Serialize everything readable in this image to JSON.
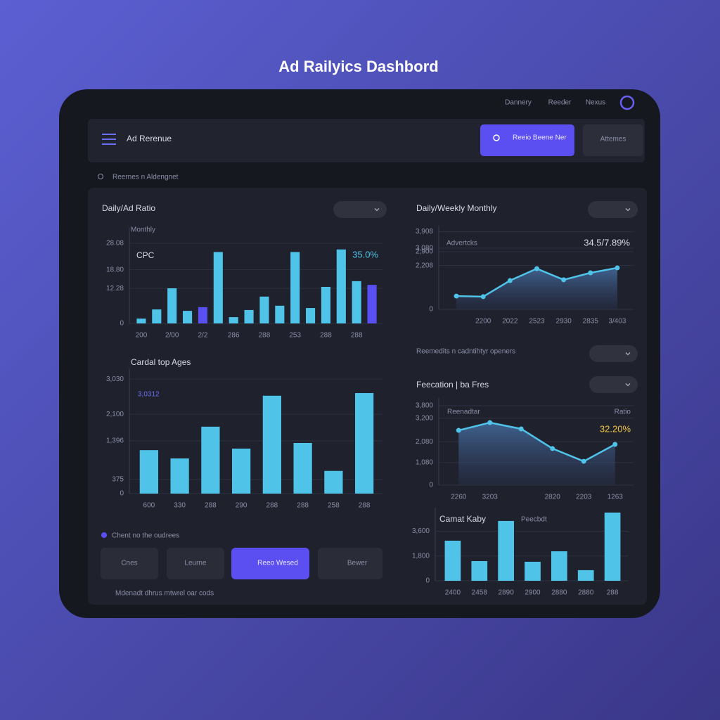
{
  "header": {
    "title": "Ad Railyics Dashbord"
  },
  "nav": {
    "items": [
      "Dannery",
      "Reeder",
      "Nexus"
    ]
  },
  "toolbar": {
    "title": "Ad Rerenue",
    "primary_button": "Reeio Beene Ner",
    "secondary_button": "Attemes"
  },
  "search": {
    "placeholder": "Reernes n Aldengnet"
  },
  "sections": {
    "right_caption": "Reemedits n cadntihtyr openers",
    "left_caption": "Chent no the oudrees",
    "footer": "Mdenadt dhrus mtwrel oar cods"
  },
  "buttons": [
    "Cnes",
    "Leurne",
    "Reeo Wesed",
    "Bewer"
  ],
  "chart_data": [
    {
      "type": "bar",
      "title": "Daily/Ad Ratio",
      "subtitle": "Monthly",
      "label": "CPC",
      "annotation": "35.0%",
      "categories": [
        "200",
        null,
        "2/00",
        null,
        "2/2",
        null,
        "286",
        null,
        "288",
        null,
        "253",
        null,
        "288",
        null,
        "288",
        null
      ],
      "values": [
        1.7,
        4.9,
        12.3,
        4.4,
        5.7,
        25,
        2.2,
        4.7,
        9.4,
        6.2,
        25,
        5.4,
        12.8,
        25.9,
        14.8,
        13.5
      ],
      "colors": [
        "#4fc3e8",
        "#4fc3e8",
        "#4fc3e8",
        "#4fc3e8",
        "#5a4ff0",
        "#4fc3e8",
        "#4fc3e8",
        "#4fc3e8",
        "#4fc3e8",
        "#4fc3e8",
        "#4fc3e8",
        "#4fc3e8",
        "#4fc3e8",
        "#4fc3e8",
        "#4fc3e8",
        "#5a4ff0"
      ],
      "ylim": [
        0,
        32
      ],
      "yticks": [
        0,
        12.28,
        {
          "value": 18.8,
          "label": "18.80"
        },
        28.08
      ],
      "grid": true
    },
    {
      "type": "area",
      "title": "Daily/Weekly Monthly",
      "label": "Advertcks",
      "annotation": "34.5/7.89%",
      "categories": [
        null,
        "2200",
        "2022",
        "2523",
        "2930",
        "2835",
        "3/403"
      ],
      "values": [
        670,
        640,
        1450,
        2050,
        1490,
        1840,
        2090
      ],
      "color": "#4fc3e8",
      "ylim": [
        0,
        4000
      ],
      "yticks": [
        0,
        {
          "value": 2208,
          "label": "2,208"
        },
        {
          "value": 2900,
          "label": "2,900"
        },
        {
          "value": 3080,
          "label": "3,080"
        },
        {
          "value": 3908,
          "label": "3,908"
        }
      ],
      "grid": true
    },
    {
      "type": "bar",
      "title": "Cardal top Ages",
      "annotation": "3,0312",
      "categories": [
        "600",
        "330",
        "288",
        "290",
        "288",
        "288",
        "258",
        "288"
      ],
      "values": [
        1150,
        930,
        1770,
        1190,
        2590,
        1340,
        600,
        2660
      ],
      "color": "#4fc3e8",
      "ylim": [
        0,
        3200
      ],
      "yticks": [
        0,
        {
          "value": 375,
          "label": "375"
        },
        {
          "value": 1396,
          "label": "1,396"
        },
        {
          "value": 2100,
          "label": "2,100"
        },
        {
          "value": 3030,
          "label": "3,030"
        }
      ],
      "grid": true
    },
    {
      "type": "area",
      "title": "Feecation | ba Fres",
      "label": "Reenadtar",
      "label2": "Ratio",
      "annotation": "32.20%",
      "categories": [
        "2260",
        "3203",
        null,
        "2820",
        "2203",
        "1263"
      ],
      "values": [
        2620,
        2990,
        2690,
        1750,
        1140,
        1950
      ],
      "color": "#4fc3e8",
      "ylim": [
        0,
        4000
      ],
      "yticks": [
        0,
        {
          "value": 1080,
          "label": "1,080"
        },
        {
          "value": 2080,
          "label": "2,080"
        },
        {
          "value": 3200,
          "label": "3,200"
        },
        {
          "value": 3800,
          "label": "3,800"
        }
      ],
      "grid": true
    },
    {
      "type": "bar",
      "title": "Camat Kaby",
      "label": "Peecbdt",
      "categories": [
        "2400",
        "2458",
        "2890",
        "2900",
        "2880",
        "2880",
        "288"
      ],
      "values": [
        2910,
        1430,
        4340,
        1380,
        2140,
        770,
        4950
      ],
      "color": "#4fc3e8",
      "ylim": [
        0,
        5000
      ],
      "yticks": [
        0,
        {
          "value": 1800,
          "label": "1,800"
        },
        {
          "value": 3600,
          "label": "3,600"
        }
      ],
      "grid": true
    }
  ]
}
